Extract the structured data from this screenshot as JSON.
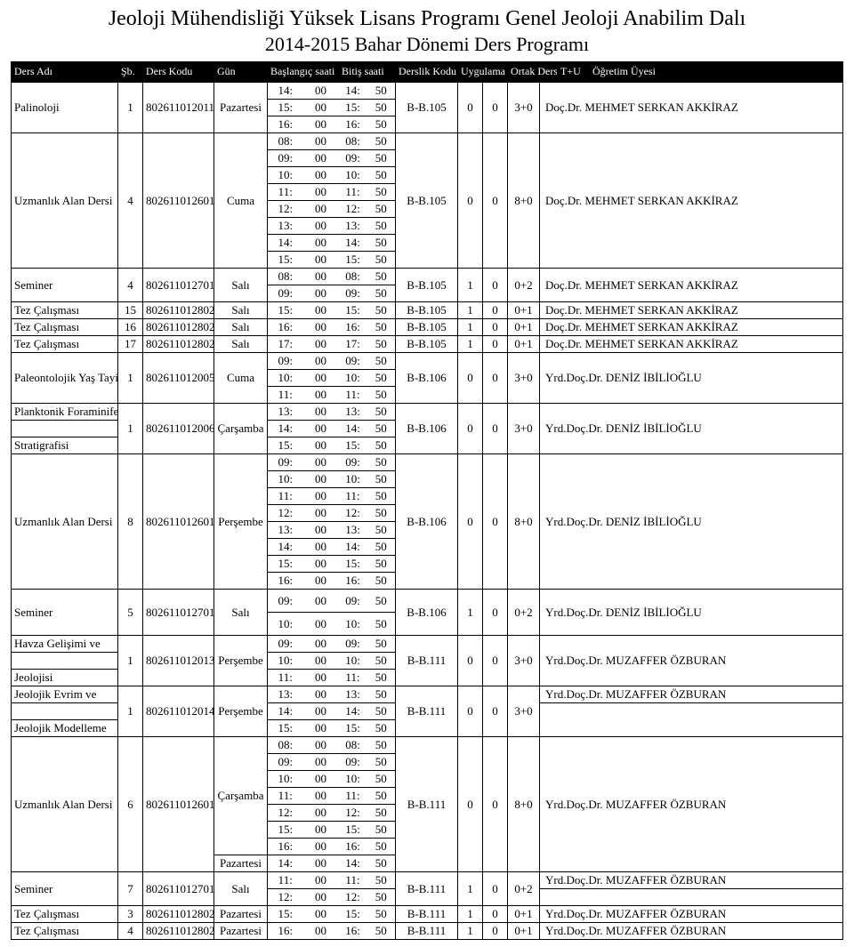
{
  "page": {
    "title1": "Jeoloji Mühendisliği Yüksek Lisans Programı Genel Jeoloji Anabilim Dalı",
    "title2": "2014-2015 Bahar Dönemi Ders Programı"
  },
  "headers": {
    "ders_adi": "Ders Adı",
    "sb": "Şb.",
    "ders_kodu": "Ders Kodu",
    "gun": "Gün",
    "baslangic": "Başlangıç saati",
    "bitis": "Bitiş saati",
    "derslik": "Derslik Kodu",
    "uygulama": "Uygulama",
    "ortak": "Ortak Ders",
    "tu": "T+U",
    "ogretim": "Öğretim Üyesi"
  },
  "style": {
    "header_bg": "#000000",
    "header_fg": "#ffffff",
    "body_bg": "#ffffff",
    "border_color": "#000000",
    "font": "Times New Roman",
    "title_fontsize": 24,
    "body_fontsize": 13
  },
  "rows": [
    {
      "name": "Palinoloji",
      "sb": "1",
      "code": "802611012011",
      "day": "Pazartesi",
      "times": [
        [
          "14:00",
          "14:50"
        ],
        [
          "15:00",
          "15:50"
        ],
        [
          "16:00",
          "16:50"
        ]
      ],
      "room": "B-B.105",
      "uyg": "0",
      "ortak": "0",
      "tu": "3+0",
      "inst": "Doç.Dr. MEHMET SERKAN AKKİRAZ"
    },
    {
      "name": "Uzmanlık Alan Dersi",
      "sb": "4",
      "code": "802611012601",
      "day": "Cuma",
      "times": [
        [
          "08:00",
          "08:50"
        ],
        [
          "09:00",
          "09:50"
        ],
        [
          "10:00",
          "10:50"
        ],
        [
          "11:00",
          "11:50"
        ],
        [
          "12:00",
          "12:50"
        ],
        [
          "13:00",
          "13:50"
        ],
        [
          "14:00",
          "14:50"
        ],
        [
          "15:00",
          "15:50"
        ]
      ],
      "room": "B-B.105",
      "uyg": "0",
      "ortak": "0",
      "tu": "8+0",
      "inst": "Doç.Dr. MEHMET SERKAN AKKİRAZ"
    },
    {
      "name": "Seminer",
      "sb": "4",
      "code": "802611012701",
      "day": "Salı",
      "times": [
        [
          "08:00",
          "08:50"
        ],
        [
          "09:00",
          "09:50"
        ]
      ],
      "room": "B-B.105",
      "uyg": "1",
      "ortak": "0",
      "tu": "0+2",
      "inst": "Doç.Dr. MEHMET SERKAN AKKİRAZ"
    },
    {
      "name": "Tez Çalışması",
      "sb": "15",
      "code": "802611012802",
      "day": "Salı",
      "times": [
        [
          "15:00",
          "15:50"
        ]
      ],
      "room": "B-B.105",
      "uyg": "1",
      "ortak": "0",
      "tu": "0+1",
      "inst": "Doç.Dr. MEHMET SERKAN AKKİRAZ"
    },
    {
      "name": "Tez Çalışması",
      "sb": "16",
      "code": "802611012802",
      "day": "Salı",
      "times": [
        [
          "16:00",
          "16:50"
        ]
      ],
      "room": "B-B.105",
      "uyg": "1",
      "ortak": "0",
      "tu": "0+1",
      "inst": "Doç.Dr. MEHMET SERKAN AKKİRAZ"
    },
    {
      "name": "Tez Çalışması",
      "sb": "17",
      "code": "802611012802",
      "day": "Salı",
      "times": [
        [
          "17:00",
          "17:50"
        ]
      ],
      "room": "B-B.105",
      "uyg": "1",
      "ortak": "0",
      "tu": "0+1",
      "inst": "Doç.Dr. MEHMET SERKAN AKKİRAZ"
    },
    {
      "name": "Paleontolojik Yaş Tayini",
      "sb": "1",
      "code": "802611012005",
      "day": "Cuma",
      "times": [
        [
          "09:00",
          "09:50"
        ],
        [
          "10:00",
          "10:50"
        ],
        [
          "11:00",
          "11:50"
        ]
      ],
      "room": "B-B.106",
      "uyg": "0",
      "ortak": "0",
      "tu": "3+0",
      "inst": "Yrd.Doç.Dr. DENİZ İBİLİOĞLU"
    },
    {
      "name": "Planktonik Foraminifer Stratigrafisi",
      "sb": "1",
      "code": "802611012006",
      "day": "Çarşamba",
      "times": [
        [
          "13:00",
          "13:50"
        ],
        [
          "14:00",
          "14:50"
        ],
        [
          "15:00",
          "15:50"
        ]
      ],
      "room": "B-B.106",
      "uyg": "0",
      "ortak": "0",
      "tu": "3+0",
      "inst": "Yrd.Doç.Dr. DENİZ İBİLİOĞLU",
      "name_split": [
        "Planktonik Foraminifer",
        "",
        "Stratigrafisi"
      ]
    },
    {
      "name": "Uzmanlık Alan Dersi",
      "sb": "8",
      "code": "802611012601",
      "day": "Perşembe",
      "times": [
        [
          "09:00",
          "09:50"
        ],
        [
          "10:00",
          "10:50"
        ],
        [
          "11:00",
          "11:50"
        ],
        [
          "12:00",
          "12:50"
        ],
        [
          "13:00",
          "13:50"
        ],
        [
          "14:00",
          "14:50"
        ],
        [
          "15:00",
          "15:50"
        ],
        [
          "16:00",
          "16:50"
        ]
      ],
      "room": "B-B.106",
      "uyg": "0",
      "ortak": "0",
      "tu": "8+0",
      "inst": "Yrd.Doç.Dr. DENİZ İBİLİOĞLU"
    },
    {
      "name": "Seminer",
      "sb": "5",
      "code": "802611012701",
      "day": "Salı",
      "times": [
        [
          "09:00",
          "09:50"
        ],
        [
          "10:00",
          "10:50"
        ]
      ],
      "room": "B-B.106",
      "uyg": "1",
      "ortak": "0",
      "tu": "0+2",
      "inst": "Yrd.Doç.Dr. DENİZ İBİLİOĞLU",
      "tall": true
    },
    {
      "name": "Havza Gelişimi ve Jeolojisi",
      "sb": "1",
      "code": "802611012013",
      "day": "Perşembe",
      "times": [
        [
          "09:00",
          "09:50"
        ],
        [
          "10:00",
          "10:50"
        ],
        [
          "11:00",
          "11:50"
        ]
      ],
      "room": "B-B.111",
      "uyg": "0",
      "ortak": "0",
      "tu": "3+0",
      "inst": "Yrd.Doç.Dr. MUZAFFER ÖZBURAN",
      "name_split": [
        "Havza Gelişimi ve",
        "",
        "Jeolojisi"
      ]
    },
    {
      "name": "Jeolojik Evrim ve Jeolojik Modelleme",
      "sb": "1",
      "code": "802611012014",
      "day": "Perşembe",
      "times": [
        [
          "13:00",
          "13:50"
        ],
        [
          "14:00",
          "14:50"
        ],
        [
          "15:00",
          "15:50"
        ]
      ],
      "room": "B-B.111",
      "uyg": "0",
      "ortak": "0",
      "tu": "3+0",
      "inst": "Yrd.Doç.Dr. MUZAFFER ÖZBURAN",
      "name_split": [
        "Jeolojik Evrim ve",
        "",
        "Jeolojik Modelleme"
      ],
      "inst_first_row": true
    },
    {
      "name": "Uzmanlık Alan Dersi",
      "sb": "6",
      "code": "802611012601",
      "day_rows": {
        "0": "",
        "1": "",
        "2": "",
        "3": "Çarşamba",
        "4": "",
        "5": "",
        "6": "",
        "7": "Pazartesi"
      },
      "times": [
        [
          "08:00",
          "08:50"
        ],
        [
          "09:00",
          "09:50"
        ],
        [
          "10:00",
          "10:50"
        ],
        [
          "11:00",
          "11:50"
        ],
        [
          "12:00",
          "12:50"
        ],
        [
          "15:00",
          "15:50"
        ],
        [
          "16:00",
          "16:50"
        ],
        [
          "14:00",
          "14:50"
        ]
      ],
      "room": "B-B.111",
      "uyg": "0",
      "ortak": "0",
      "tu": "8+0",
      "inst": "Yrd.Doç.Dr. MUZAFFER ÖZBURAN",
      "day_spans": [
        [
          0,
          7
        ],
        [
          7,
          1
        ]
      ]
    },
    {
      "name": "Seminer",
      "sb": "7",
      "code": "802611012701",
      "day": "Salı",
      "times": [
        [
          "11:00",
          "11:50"
        ],
        [
          "12:00",
          "12:50"
        ]
      ],
      "room": "B-B.111",
      "uyg": "1",
      "ortak": "0",
      "tu": "0+2",
      "inst": "Yrd.Doç.Dr. MUZAFFER ÖZBURAN",
      "inst_first_row": true
    },
    {
      "name": "Tez Çalışması",
      "sb": "3",
      "code": "802611012802",
      "day": "Pazartesi",
      "times": [
        [
          "15:00",
          "15:50"
        ]
      ],
      "room": "B-B.111",
      "uyg": "1",
      "ortak": "0",
      "tu": "0+1",
      "inst": "Yrd.Doç.Dr. MUZAFFER ÖZBURAN"
    },
    {
      "name": "Tez Çalışması",
      "sb": "4",
      "code": "802611012802",
      "day": "Pazartesi",
      "times": [
        [
          "16:00",
          "16:50"
        ]
      ],
      "room": "B-B.111",
      "uyg": "1",
      "ortak": "0",
      "tu": "0+1",
      "inst": "Yrd.Doç.Dr. MUZAFFER ÖZBURAN"
    }
  ]
}
